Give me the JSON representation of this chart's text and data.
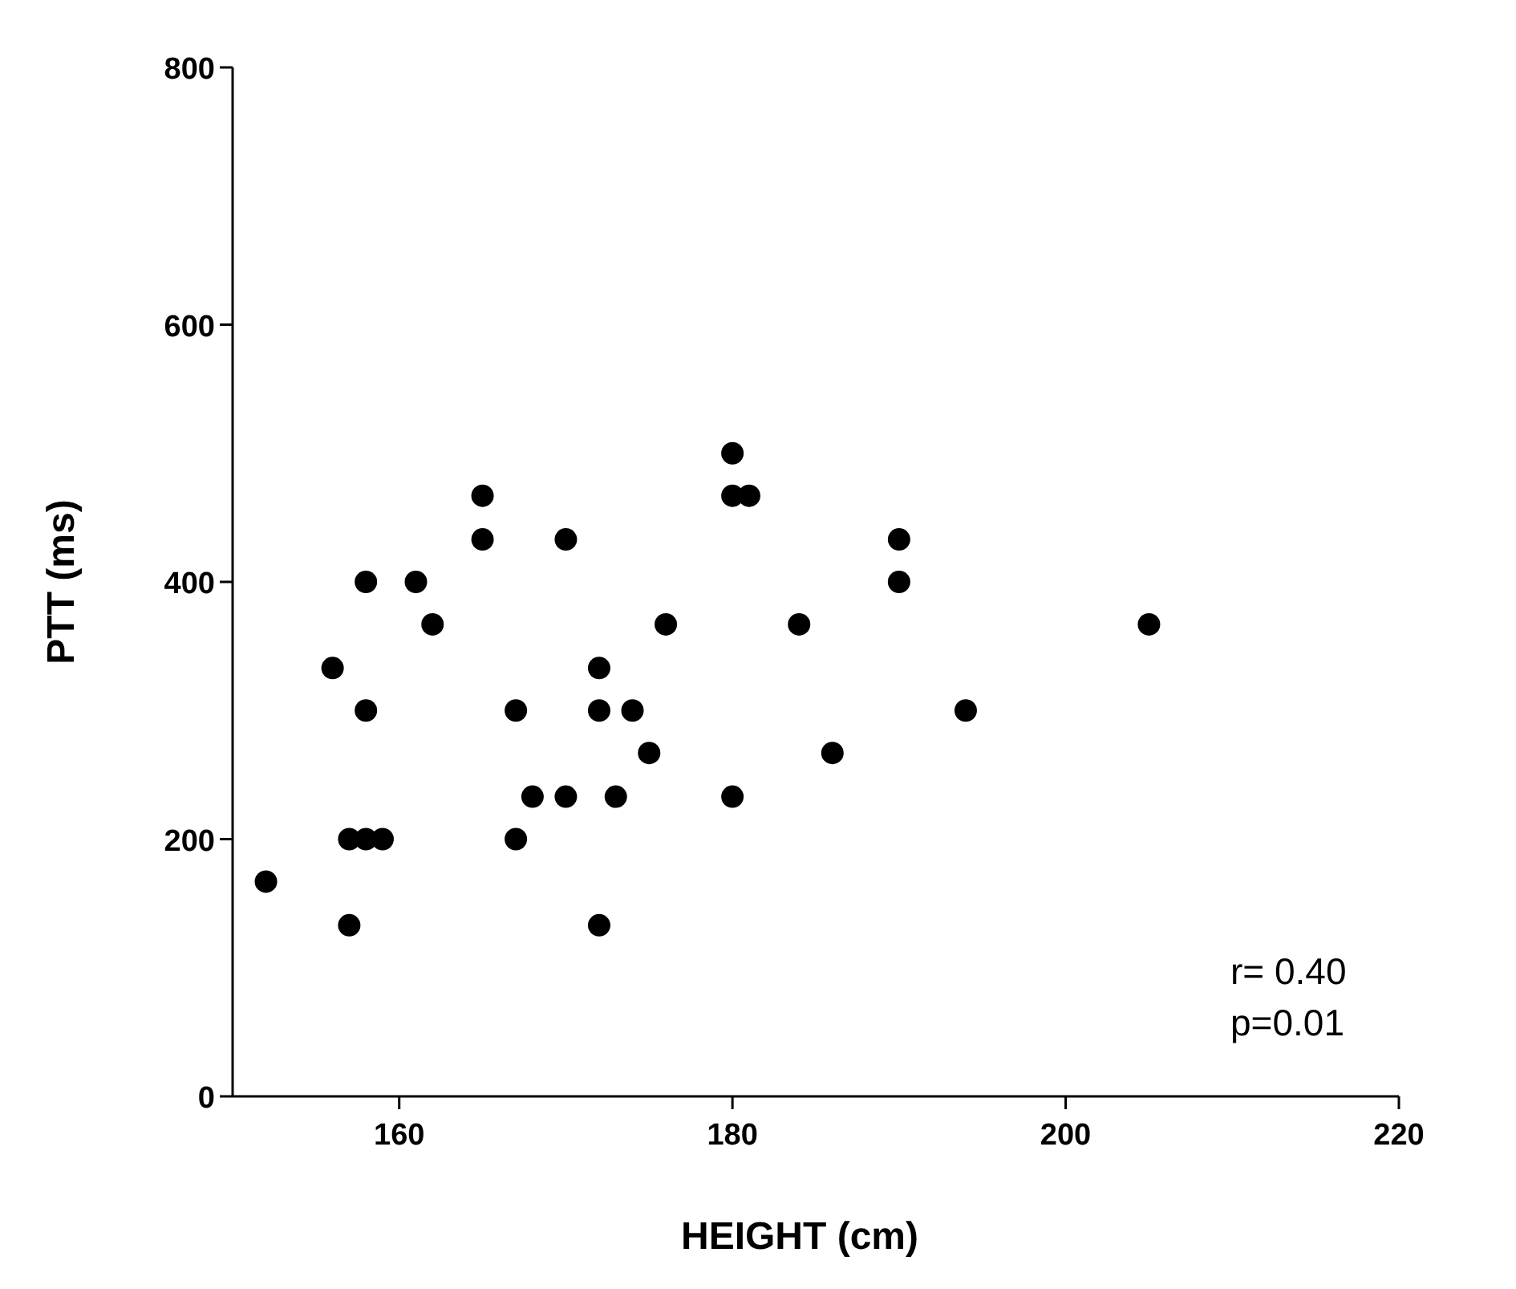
{
  "chart_data": {
    "type": "scatter",
    "xlabel": "HEIGHT (cm)",
    "ylabel": "PTT (ms)",
    "x": [
      152,
      156,
      157,
      157,
      158,
      158,
      158,
      159,
      161,
      162,
      165,
      165,
      167,
      167,
      168,
      170,
      170,
      172,
      172,
      172,
      173,
      174,
      175,
      176,
      180,
      180,
      181,
      180,
      184,
      186,
      190,
      190,
      194,
      205
    ],
    "values": [
      167,
      333,
      200,
      133,
      200,
      300,
      400,
      200,
      400,
      367,
      433,
      467,
      300,
      200,
      233,
      433,
      233,
      333,
      300,
      133,
      233,
      300,
      267,
      367,
      500,
      467,
      467,
      233,
      367,
      267,
      433,
      400,
      300,
      367
    ],
    "color": "#000000",
    "marker": "circle",
    "xlim": [
      150,
      220
    ],
    "xticks": [
      160,
      180,
      200,
      220
    ],
    "ylim": [
      0,
      800
    ],
    "yticks": [
      0,
      200,
      400,
      600,
      800
    ],
    "annotations": [
      "r= 0.40",
      "p=0.01"
    ]
  }
}
